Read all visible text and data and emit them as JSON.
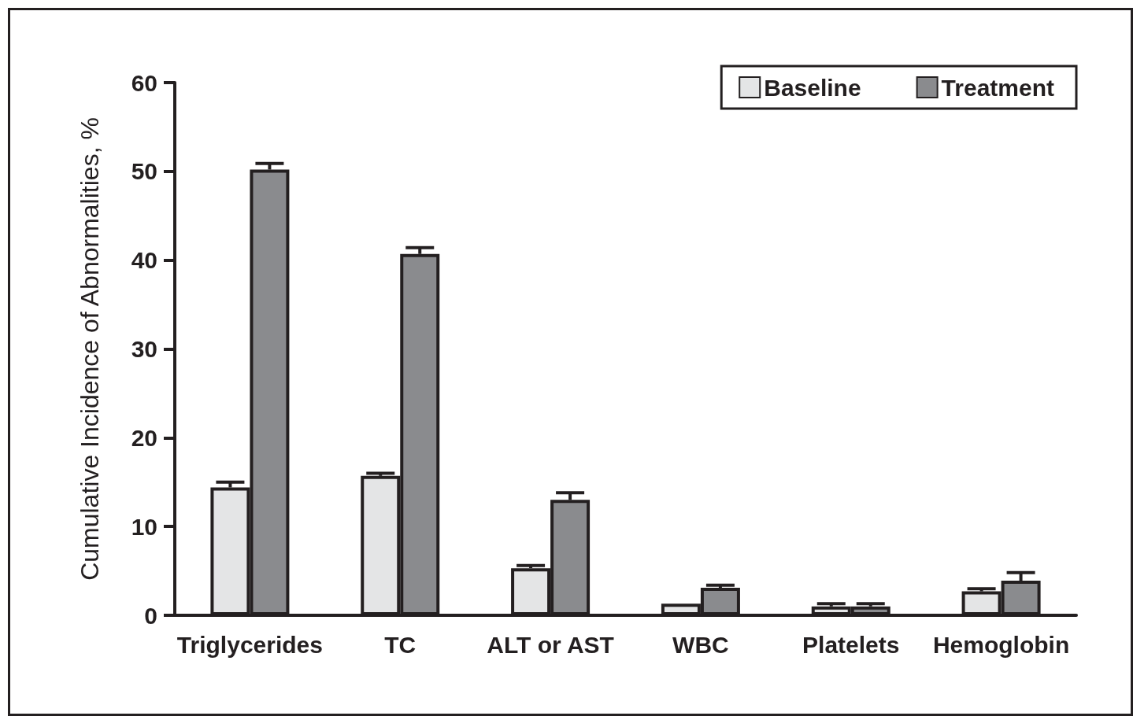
{
  "chart_data": {
    "type": "bar",
    "ylabel": "Cumulative Incidence of Abnormalities, %",
    "categories": [
      "Triglycerides",
      "TC",
      "ALT or AST",
      "WBC",
      "Platelets",
      "Hemoglobin"
    ],
    "series": [
      {
        "name": "Baseline",
        "color": "#e4e5e6",
        "values": [
          14.4,
          15.7,
          5.3,
          1.3,
          1.0,
          2.7
        ],
        "errors": [
          0.6,
          0.3,
          0.3,
          null,
          0.3,
          0.3
        ]
      },
      {
        "name": "Treatment",
        "color": "#8a8b8e",
        "values": [
          50.2,
          40.7,
          13.0,
          3.1,
          1.0,
          3.9
        ],
        "errors": [
          0.7,
          0.7,
          0.8,
          0.3,
          0.3,
          0.9
        ]
      }
    ],
    "ylim": [
      0,
      60
    ],
    "yticks": [
      0,
      10,
      20,
      30,
      40,
      50,
      60
    ],
    "grid": false,
    "legend": "top right"
  }
}
